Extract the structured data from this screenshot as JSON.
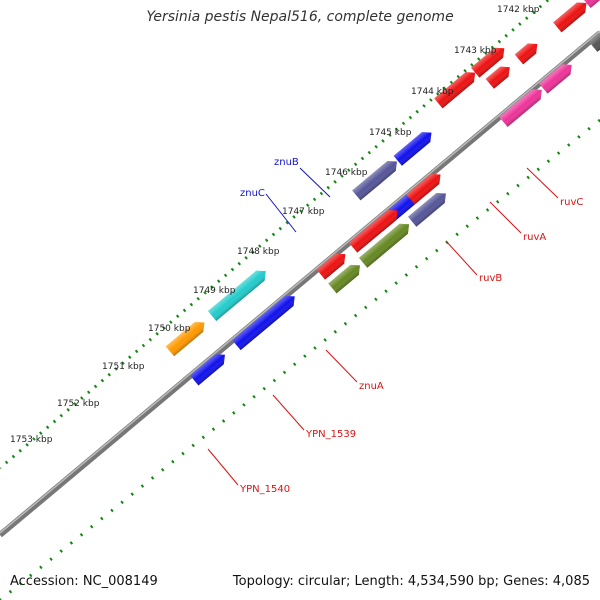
{
  "title": "Yersinia pestis Nepal516, complete genome",
  "footer": {
    "accession": "Accession: NC_008149",
    "topology": "Topology: circular; Length: 4,534,590 bp; Genes: 4,085"
  },
  "colors": {
    "red": "#ee1111",
    "pink": "#ee3399",
    "slate": "#555599",
    "blue": "#1111ee",
    "olive": "#668822",
    "cyan": "#22cccc",
    "orange": "#ff9900",
    "gray": "#555555",
    "backbone": "#777777",
    "ticks": "#118811",
    "label_red": "#dd1111",
    "label_blue": "#1111cc"
  },
  "ticks": [
    "1742 kbp",
    "1743 kbp",
    "1744 kbp",
    "1745 kbp",
    "1746 kbp",
    "1747 kbp",
    "1748 kbp",
    "1749 kbp",
    "1750 kbp",
    "1751 kbp",
    "1752 kbp",
    "1753 kbp"
  ],
  "gene_labels": [
    "ruvC",
    "ruvA",
    "ruvB",
    "znuB",
    "znuC",
    "znuA",
    "YPN_1539",
    "YPN_1540"
  ]
}
